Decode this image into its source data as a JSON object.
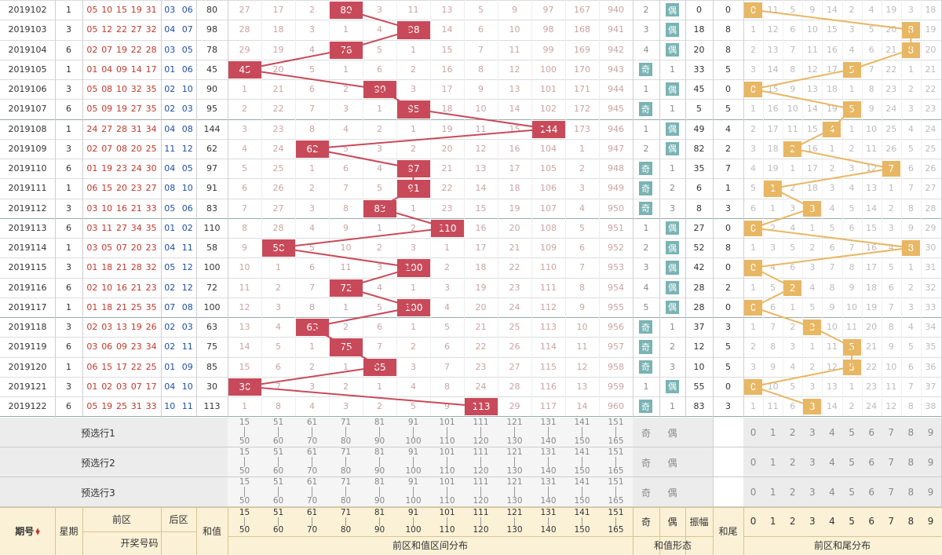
{
  "rows": [
    {
      "id": "2019102",
      "week": "1",
      "front": [
        "05",
        "10",
        "15",
        "19",
        "31"
      ],
      "back": [
        "03",
        "06"
      ],
      "sum": "80",
      "miss": [
        "27",
        "17",
        "2",
        "",
        "3",
        "11",
        "13",
        "5",
        "9",
        "97",
        "167",
        "940"
      ],
      "hit": 3,
      "parity": {
        "odd": "2",
        "even": "偶",
        "evenHit": true
      },
      "amp": "0",
      "tail": "0",
      "tailMiss": [
        "",
        "11",
        "5",
        "9",
        "14",
        "2",
        "4",
        "19",
        "3",
        "18"
      ],
      "tailHit": 0
    },
    {
      "id": "2019103",
      "week": "3",
      "front": [
        "05",
        "12",
        "22",
        "27",
        "32"
      ],
      "back": [
        "04",
        "07"
      ],
      "sum": "98",
      "miss": [
        "28",
        "18",
        "3",
        "1",
        "4",
        "",
        "14",
        "6",
        "10",
        "98",
        "168",
        "941"
      ],
      "hit": 5,
      "parity": {
        "odd": "3",
        "even": "偶",
        "evenHit": true
      },
      "amp": "18",
      "tail": "8",
      "tailMiss": [
        "1",
        "12",
        "6",
        "10",
        "15",
        "3",
        "5",
        "20",
        "",
        "19"
      ],
      "tailHit": 8
    },
    {
      "id": "2019104",
      "week": "6",
      "front": [
        "02",
        "07",
        "19",
        "22",
        "28"
      ],
      "back": [
        "03",
        "05"
      ],
      "sum": "78",
      "miss": [
        "29",
        "19",
        "4",
        "",
        "5",
        "1",
        "15",
        "7",
        "11",
        "99",
        "169",
        "942"
      ],
      "hit": 3,
      "parity": {
        "odd": "4",
        "even": "偶",
        "evenHit": true
      },
      "amp": "20",
      "tail": "8",
      "tailMiss": [
        "2",
        "13",
        "7",
        "11",
        "16",
        "4",
        "6",
        "21",
        "",
        "20"
      ],
      "tailHit": 8
    },
    {
      "id": "2019105",
      "week": "1",
      "front": [
        "01",
        "04",
        "09",
        "14",
        "17"
      ],
      "back": [
        "01",
        "06"
      ],
      "sum": "45",
      "miss": [
        "",
        "20",
        "5",
        "1",
        "6",
        "2",
        "16",
        "8",
        "12",
        "100",
        "170",
        "943"
      ],
      "hit": 0,
      "parity": {
        "odd": "奇",
        "even": "1",
        "evenHit": false
      },
      "amp": "33",
      "tail": "5",
      "tailMiss": [
        "3",
        "14",
        "8",
        "12",
        "17",
        "",
        "7",
        "22",
        "1",
        "21"
      ],
      "tailHit": 5
    },
    {
      "id": "2019106",
      "week": "3",
      "front": [
        "05",
        "08",
        "10",
        "32",
        "35"
      ],
      "back": [
        "02",
        "10"
      ],
      "sum": "90",
      "miss": [
        "1",
        "21",
        "6",
        "2",
        "",
        "3",
        "17",
        "9",
        "13",
        "101",
        "171",
        "944"
      ],
      "hit": 4,
      "parity": {
        "odd": "1",
        "even": "偶",
        "evenHit": true
      },
      "amp": "45",
      "tail": "0",
      "tailMiss": [
        "",
        "15",
        "9",
        "13",
        "18",
        "1",
        "8",
        "23",
        "2",
        "22"
      ],
      "tailHit": 0
    },
    {
      "id": "2019107",
      "week": "6",
      "front": [
        "05",
        "09",
        "19",
        "27",
        "35"
      ],
      "back": [
        "02",
        "03"
      ],
      "sum": "95",
      "miss": [
        "2",
        "22",
        "7",
        "3",
        "1",
        "",
        "18",
        "10",
        "14",
        "102",
        "172",
        "945"
      ],
      "hit": 5,
      "parity": {
        "odd": "奇",
        "even": "1",
        "evenHit": false
      },
      "amp": "5",
      "tail": "5",
      "tailMiss": [
        "1",
        "16",
        "10",
        "14",
        "19",
        "",
        "9",
        "24",
        "3",
        "23"
      ],
      "tailHit": 5
    },
    {
      "id": "2019108",
      "week": "1",
      "front": [
        "24",
        "27",
        "28",
        "31",
        "34"
      ],
      "back": [
        "04",
        "08"
      ],
      "sum": "144",
      "miss": [
        "3",
        "23",
        "8",
        "4",
        "2",
        "1",
        "19",
        "11",
        "15",
        "",
        "173",
        "946"
      ],
      "hit": 9,
      "parity": {
        "odd": "1",
        "even": "偶",
        "evenHit": true
      },
      "amp": "49",
      "tail": "4",
      "tailMiss": [
        "2",
        "17",
        "11",
        "15",
        "",
        "1",
        "10",
        "25",
        "4",
        "24"
      ],
      "tailHit": 4
    },
    {
      "id": "2019109",
      "week": "3",
      "front": [
        "02",
        "07",
        "08",
        "20",
        "25"
      ],
      "back": [
        "11",
        "12"
      ],
      "sum": "62",
      "miss": [
        "4",
        "24",
        "",
        "5",
        "3",
        "2",
        "20",
        "12",
        "16",
        "104",
        "1",
        "947"
      ],
      "hit": 2,
      "parity": {
        "odd": "2",
        "even": "偶",
        "evenHit": true
      },
      "amp": "82",
      "tail": "2",
      "tailMiss": [
        "3",
        "18",
        "",
        "16",
        "1",
        "2",
        "11",
        "26",
        "5",
        "25"
      ],
      "tailHit": 2
    },
    {
      "id": "2019110",
      "week": "6",
      "front": [
        "01",
        "19",
        "23",
        "24",
        "30"
      ],
      "back": [
        "04",
        "05"
      ],
      "sum": "97",
      "miss": [
        "5",
        "25",
        "1",
        "6",
        "4",
        "",
        "21",
        "13",
        "17",
        "105",
        "2",
        "948"
      ],
      "hit": 5,
      "parity": {
        "odd": "奇",
        "even": "1",
        "evenHit": false
      },
      "amp": "35",
      "tail": "7",
      "tailMiss": [
        "4",
        "19",
        "1",
        "17",
        "2",
        "3",
        "12",
        "",
        "6",
        "26"
      ],
      "tailHit": 7
    },
    {
      "id": "2019111",
      "week": "1",
      "front": [
        "06",
        "15",
        "20",
        "23",
        "27"
      ],
      "back": [
        "08",
        "10"
      ],
      "sum": "91",
      "miss": [
        "6",
        "26",
        "2",
        "7",
        "5",
        "",
        "22",
        "14",
        "18",
        "106",
        "3",
        "949"
      ],
      "hit": 5,
      "parity": {
        "odd": "奇",
        "even": "2",
        "evenHit": false
      },
      "amp": "6",
      "tail": "1",
      "tailMiss": [
        "5",
        "",
        "2",
        "18",
        "3",
        "4",
        "13",
        "1",
        "7",
        "27"
      ],
      "tailHit": 1
    },
    {
      "id": "2019112",
      "week": "3",
      "front": [
        "03",
        "10",
        "16",
        "21",
        "33"
      ],
      "back": [
        "05",
        "06"
      ],
      "sum": "83",
      "miss": [
        "7",
        "27",
        "3",
        "8",
        "",
        "1",
        "23",
        "15",
        "19",
        "107",
        "4",
        "950"
      ],
      "hit": 4,
      "parity": {
        "odd": "奇",
        "even": "3",
        "evenHit": false
      },
      "amp": "8",
      "tail": "3",
      "tailMiss": [
        "6",
        "1",
        "3",
        "",
        "4",
        "5",
        "14",
        "2",
        "8",
        "28"
      ],
      "tailHit": 3
    },
    {
      "id": "2019113",
      "week": "6",
      "front": [
        "03",
        "11",
        "27",
        "34",
        "35"
      ],
      "back": [
        "01",
        "02"
      ],
      "sum": "110",
      "miss": [
        "8",
        "28",
        "4",
        "9",
        "1",
        "2",
        "",
        "16",
        "20",
        "108",
        "5",
        "951"
      ],
      "hit": 6,
      "parity": {
        "odd": "1",
        "even": "偶",
        "evenHit": true
      },
      "amp": "27",
      "tail": "0",
      "tailMiss": [
        "",
        "2",
        "4",
        "1",
        "5",
        "6",
        "15",
        "3",
        "9",
        "29"
      ],
      "tailHit": 0
    },
    {
      "id": "2019114",
      "week": "1",
      "front": [
        "03",
        "05",
        "07",
        "20",
        "23"
      ],
      "back": [
        "04",
        "11"
      ],
      "sum": "58",
      "miss": [
        "9",
        "",
        "5",
        "10",
        "2",
        "3",
        "1",
        "17",
        "21",
        "109",
        "6",
        "952"
      ],
      "hit": 1,
      "parity": {
        "odd": "2",
        "even": "偶",
        "evenHit": true
      },
      "amp": "52",
      "tail": "8",
      "tailMiss": [
        "1",
        "3",
        "5",
        "2",
        "6",
        "7",
        "16",
        "4",
        "",
        "30"
      ],
      "tailHit": 8
    },
    {
      "id": "2019115",
      "week": "3",
      "front": [
        "01",
        "18",
        "21",
        "28",
        "32"
      ],
      "back": [
        "05",
        "12"
      ],
      "sum": "100",
      "miss": [
        "10",
        "1",
        "6",
        "11",
        "3",
        "",
        "2",
        "18",
        "22",
        "110",
        "7",
        "953"
      ],
      "hit": 5,
      "parity": {
        "odd": "3",
        "even": "偶",
        "evenHit": true
      },
      "amp": "42",
      "tail": "0",
      "tailMiss": [
        "",
        "4",
        "6",
        "3",
        "7",
        "8",
        "17",
        "5",
        "1",
        "31"
      ],
      "tailHit": 0
    },
    {
      "id": "2019116",
      "week": "6",
      "front": [
        "02",
        "10",
        "16",
        "21",
        "23"
      ],
      "back": [
        "02",
        "12"
      ],
      "sum": "72",
      "miss": [
        "11",
        "2",
        "7",
        "",
        "4",
        "1",
        "3",
        "19",
        "23",
        "111",
        "8",
        "954"
      ],
      "hit": 3,
      "parity": {
        "odd": "4",
        "even": "偶",
        "evenHit": true
      },
      "amp": "28",
      "tail": "2",
      "tailMiss": [
        "1",
        "5",
        "",
        "4",
        "8",
        "9",
        "18",
        "6",
        "2",
        "32"
      ],
      "tailHit": 2
    },
    {
      "id": "2019117",
      "week": "1",
      "front": [
        "01",
        "18",
        "21",
        "25",
        "35"
      ],
      "back": [
        "07",
        "08"
      ],
      "sum": "100",
      "miss": [
        "12",
        "3",
        "8",
        "1",
        "5",
        "",
        "4",
        "20",
        "24",
        "112",
        "9",
        "955"
      ],
      "hit": 5,
      "parity": {
        "odd": "5",
        "even": "偶",
        "evenHit": true
      },
      "amp": "28",
      "tail": "0",
      "tailMiss": [
        "",
        "6",
        "1",
        "5",
        "9",
        "10",
        "19",
        "7",
        "3",
        "33"
      ],
      "tailHit": 0
    },
    {
      "id": "2019118",
      "week": "3",
      "front": [
        "02",
        "03",
        "13",
        "19",
        "26"
      ],
      "back": [
        "02",
        "03"
      ],
      "sum": "63",
      "miss": [
        "13",
        "4",
        "",
        "2",
        "6",
        "1",
        "5",
        "21",
        "25",
        "113",
        "10",
        "956"
      ],
      "hit": 2,
      "parity": {
        "odd": "奇",
        "even": "1",
        "evenHit": false
      },
      "amp": "37",
      "tail": "3",
      "tailMiss": [
        "1",
        "7",
        "2",
        "",
        "10",
        "11",
        "20",
        "8",
        "4",
        "34"
      ],
      "tailHit": 3
    },
    {
      "id": "2019119",
      "week": "6",
      "front": [
        "03",
        "06",
        "09",
        "23",
        "34"
      ],
      "back": [
        "02",
        "11"
      ],
      "sum": "75",
      "miss": [
        "14",
        "5",
        "1",
        "",
        "7",
        "2",
        "6",
        "22",
        "26",
        "114",
        "11",
        "957"
      ],
      "hit": 3,
      "parity": {
        "odd": "奇",
        "even": "2",
        "evenHit": false
      },
      "amp": "12",
      "tail": "5",
      "tailMiss": [
        "2",
        "8",
        "3",
        "1",
        "11",
        "",
        "21",
        "9",
        "5",
        "35"
      ],
      "tailHit": 5
    },
    {
      "id": "2019120",
      "week": "1",
      "front": [
        "06",
        "15",
        "17",
        "22",
        "25"
      ],
      "back": [
        "01",
        "09"
      ],
      "sum": "85",
      "miss": [
        "15",
        "6",
        "2",
        "1",
        "",
        "3",
        "7",
        "23",
        "27",
        "115",
        "12",
        "958"
      ],
      "hit": 4,
      "parity": {
        "odd": "奇",
        "even": "3",
        "evenHit": false
      },
      "amp": "10",
      "tail": "5",
      "tailMiss": [
        "3",
        "9",
        "4",
        "2",
        "12",
        "",
        "22",
        "10",
        "6",
        "36"
      ],
      "tailHit": 5
    },
    {
      "id": "2019121",
      "week": "3",
      "front": [
        "01",
        "02",
        "03",
        "07",
        "17"
      ],
      "back": [
        "04",
        "10"
      ],
      "sum": "30",
      "miss": [
        "",
        "7",
        "3",
        "2",
        "1",
        "4",
        "8",
        "24",
        "28",
        "116",
        "13",
        "959"
      ],
      "hit": 0,
      "parity": {
        "odd": "1",
        "even": "偶",
        "evenHit": true
      },
      "amp": "55",
      "tail": "0",
      "tailMiss": [
        "",
        "10",
        "5",
        "3",
        "13",
        "1",
        "23",
        "11",
        "7",
        "37"
      ],
      "tailHit": 0
    },
    {
      "id": "2019122",
      "week": "6",
      "front": [
        "05",
        "19",
        "25",
        "31",
        "33"
      ],
      "back": [
        "10",
        "11"
      ],
      "sum": "113",
      "miss": [
        "1",
        "8",
        "4",
        "3",
        "2",
        "5",
        "9",
        "",
        "29",
        "117",
        "14",
        "960"
      ],
      "hit": 7,
      "parity": {
        "odd": "奇",
        "even": "1",
        "evenHit": false
      },
      "amp": "83",
      "tail": "3",
      "tailMiss": [
        "1",
        "11",
        "6",
        "",
        "14",
        "2",
        "24",
        "12",
        "8",
        "38"
      ],
      "tailHit": 3
    }
  ],
  "ranges": [
    [
      "15",
      "50"
    ],
    [
      "51",
      "60"
    ],
    [
      "61",
      "70"
    ],
    [
      "71",
      "80"
    ],
    [
      "81",
      "90"
    ],
    [
      "91",
      "100"
    ],
    [
      "101",
      "110"
    ],
    [
      "111",
      "120"
    ],
    [
      "121",
      "130"
    ],
    [
      "131",
      "140"
    ],
    [
      "141",
      "150"
    ],
    [
      "151",
      "165"
    ]
  ],
  "digits": [
    "0",
    "1",
    "2",
    "3",
    "4",
    "5",
    "6",
    "7",
    "8",
    "9"
  ],
  "predRows": [
    "预选行1",
    "预选行2",
    "预选行3"
  ],
  "parityLabels": {
    "odd": "奇",
    "even": "偶"
  },
  "header": {
    "period": "期号",
    "week": "星期",
    "front": "前区",
    "back": "后区",
    "sum": "和值",
    "draw": "开奖号码",
    "rangeTitle": "前区和值区间分布",
    "odd": "奇",
    "even": "偶",
    "amp": "振幅",
    "shapeTitle": "和值形态",
    "tail": "和尾",
    "tailTitle": "前区和尾分布"
  },
  "colors": {
    "hit": "#c84a5a",
    "tail": "#e8b763",
    "shape": "#7ab3b3",
    "header": "#fbf1d6",
    "pred": "#ececec"
  }
}
